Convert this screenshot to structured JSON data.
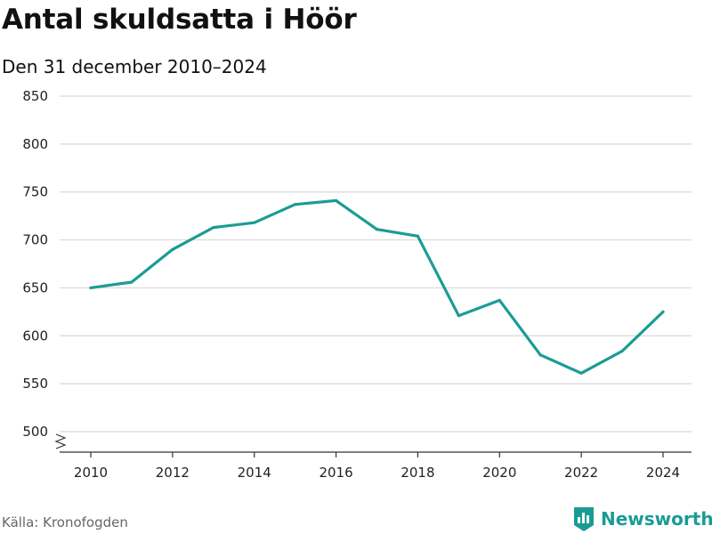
{
  "title": "Antal skuldsatta i Höör",
  "subtitle": "Den 31 december 2010–2024",
  "source": "Källa: Kronofogden",
  "brand": {
    "name": "Newsworthy",
    "icon": "newsworthy-logo-icon"
  },
  "colors": {
    "line": "#1a9c95",
    "grid": "#d9d9d9",
    "axis": "#333333",
    "brand": "#1a9c95"
  },
  "chart_data": {
    "type": "line",
    "title": "Antal skuldsatta i Höör",
    "subtitle": "Den 31 december 2010–2024",
    "xlabel": "",
    "ylabel": "",
    "x": [
      2010,
      2011,
      2012,
      2013,
      2014,
      2015,
      2016,
      2017,
      2018,
      2019,
      2020,
      2021,
      2022,
      2023,
      2024
    ],
    "series": [
      {
        "values": [
          650,
          656,
          690,
          713,
          718,
          737,
          741,
          711,
          704,
          621,
          637,
          580,
          561,
          584,
          625
        ]
      }
    ],
    "ylim": [
      500,
      850
    ],
    "xlim": [
      2010,
      2024
    ],
    "yticks": [
      500,
      550,
      600,
      650,
      700,
      750,
      800,
      850
    ],
    "xticks": [
      2010,
      2012,
      2014,
      2016,
      2018,
      2020,
      2022,
      2024
    ],
    "grid": true,
    "axis_break": true
  }
}
